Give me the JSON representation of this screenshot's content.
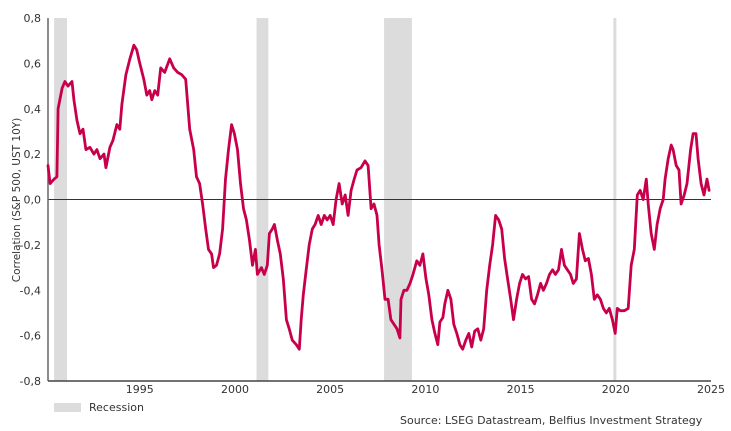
{
  "chart_data": {
    "type": "line",
    "title": "",
    "ylabel": "Correlation (S&P 500, UST 10Y)",
    "xlabel": "",
    "xlim": [
      1990.18,
      2025.0
    ],
    "ylim": [
      -0.8,
      0.8
    ],
    "x_ticks": [
      1995,
      2000,
      2005,
      2010,
      2015,
      2020,
      2025
    ],
    "x_tick_labels": [
      "1995",
      "2000",
      "2005",
      "2010",
      "2015",
      "2020",
      "2025"
    ],
    "y_ticks": [
      -0.8,
      -0.6,
      -0.4,
      -0.2,
      0.0,
      0.2,
      0.4,
      0.6,
      0.8
    ],
    "y_tick_labels": [
      "-0,8",
      "-0,6",
      "-0,4",
      "-0,2",
      "0,0",
      "0,2",
      "0,4",
      "0,6",
      "0,8"
    ],
    "grid": false,
    "zero_line": true,
    "line_color": "#c8004b",
    "recession_color": "#dcdcdc",
    "recessions": [
      [
        1990.5,
        1991.18
      ],
      [
        2001.13,
        2001.75
      ],
      [
        2007.83,
        2009.29
      ],
      [
        2019.87,
        2020.03
      ]
    ],
    "legend": {
      "entries": [
        "Recession"
      ],
      "placement": "bottom-left"
    },
    "source": "Source: LSEG Datastream, Belfius Investment Strategy",
    "series": [
      {
        "points": [
          [
            1990.18,
            0.15
          ],
          [
            1990.29,
            0.07
          ],
          [
            1990.5,
            0.09
          ],
          [
            1990.65,
            0.1
          ],
          [
            1990.71,
            0.4
          ],
          [
            1990.92,
            0.49
          ],
          [
            1991.07,
            0.52
          ],
          [
            1991.23,
            0.5
          ],
          [
            1991.44,
            0.52
          ],
          [
            1991.54,
            0.44
          ],
          [
            1991.7,
            0.35
          ],
          [
            1991.86,
            0.29
          ],
          [
            1992.02,
            0.31
          ],
          [
            1992.17,
            0.22
          ],
          [
            1992.38,
            0.23
          ],
          [
            1992.59,
            0.2
          ],
          [
            1992.75,
            0.22
          ],
          [
            1992.91,
            0.18
          ],
          [
            1993.12,
            0.2
          ],
          [
            1993.22,
            0.14
          ],
          [
            1993.43,
            0.23
          ],
          [
            1993.59,
            0.26
          ],
          [
            1993.8,
            0.33
          ],
          [
            1993.95,
            0.31
          ],
          [
            1994.06,
            0.42
          ],
          [
            1994.27,
            0.55
          ],
          [
            1994.48,
            0.62
          ],
          [
            1994.69,
            0.68
          ],
          [
            1994.84,
            0.66
          ],
          [
            1995.0,
            0.6
          ],
          [
            1995.21,
            0.53
          ],
          [
            1995.37,
            0.46
          ],
          [
            1995.52,
            0.48
          ],
          [
            1995.63,
            0.44
          ],
          [
            1995.79,
            0.48
          ],
          [
            1995.94,
            0.46
          ],
          [
            1996.1,
            0.58
          ],
          [
            1996.31,
            0.56
          ],
          [
            1996.57,
            0.62
          ],
          [
            1996.78,
            0.58
          ],
          [
            1996.99,
            0.56
          ],
          [
            1997.2,
            0.55
          ],
          [
            1997.41,
            0.53
          ],
          [
            1997.62,
            0.31
          ],
          [
            1997.83,
            0.22
          ],
          [
            1997.98,
            0.1
          ],
          [
            1998.14,
            0.07
          ],
          [
            1998.3,
            -0.02
          ],
          [
            1998.46,
            -0.13
          ],
          [
            1998.61,
            -0.22
          ],
          [
            1998.77,
            -0.24
          ],
          [
            1998.87,
            -0.3
          ],
          [
            1999.03,
            -0.29
          ],
          [
            1999.19,
            -0.24
          ],
          [
            1999.35,
            -0.13
          ],
          [
            1999.5,
            0.09
          ],
          [
            1999.66,
            0.22
          ],
          [
            1999.82,
            0.33
          ],
          [
            1999.97,
            0.29
          ],
          [
            2000.13,
            0.22
          ],
          [
            2000.29,
            0.07
          ],
          [
            2000.45,
            -0.04
          ],
          [
            2000.6,
            -0.09
          ],
          [
            2000.76,
            -0.18
          ],
          [
            2000.92,
            -0.29
          ],
          [
            2001.07,
            -0.22
          ],
          [
            2001.18,
            -0.33
          ],
          [
            2001.39,
            -0.3
          ],
          [
            2001.54,
            -0.33
          ],
          [
            2001.7,
            -0.29
          ],
          [
            2001.81,
            -0.15
          ],
          [
            2001.96,
            -0.13
          ],
          [
            2002.07,
            -0.11
          ],
          [
            2002.23,
            -0.18
          ],
          [
            2002.38,
            -0.24
          ],
          [
            2002.54,
            -0.35
          ],
          [
            2002.7,
            -0.53
          ],
          [
            2002.85,
            -0.57
          ],
          [
            2003.01,
            -0.62
          ],
          [
            2003.22,
            -0.64
          ],
          [
            2003.38,
            -0.66
          ],
          [
            2003.48,
            -0.53
          ],
          [
            2003.59,
            -0.42
          ],
          [
            2003.74,
            -0.31
          ],
          [
            2003.9,
            -0.2
          ],
          [
            2004.06,
            -0.13
          ],
          [
            2004.21,
            -0.11
          ],
          [
            2004.37,
            -0.07
          ],
          [
            2004.53,
            -0.11
          ],
          [
            2004.69,
            -0.07
          ],
          [
            2004.84,
            -0.09
          ],
          [
            2005.0,
            -0.07
          ],
          [
            2005.16,
            -0.11
          ],
          [
            2005.31,
            0.0
          ],
          [
            2005.47,
            0.07
          ],
          [
            2005.63,
            -0.02
          ],
          [
            2005.79,
            0.02
          ],
          [
            2005.94,
            -0.07
          ],
          [
            2006.1,
            0.04
          ],
          [
            2006.26,
            0.09
          ],
          [
            2006.41,
            0.13
          ],
          [
            2006.62,
            0.14
          ],
          [
            2006.83,
            0.17
          ],
          [
            2006.99,
            0.15
          ],
          [
            2007.15,
            -0.04
          ],
          [
            2007.3,
            -0.02
          ],
          [
            2007.46,
            -0.07
          ],
          [
            2007.57,
            -0.2
          ],
          [
            2007.72,
            -0.31
          ],
          [
            2007.88,
            -0.44
          ],
          [
            2008.04,
            -0.44
          ],
          [
            2008.19,
            -0.53
          ],
          [
            2008.35,
            -0.55
          ],
          [
            2008.51,
            -0.57
          ],
          [
            2008.66,
            -0.61
          ],
          [
            2008.72,
            -0.44
          ],
          [
            2008.87,
            -0.4
          ],
          [
            2009.03,
            -0.4
          ],
          [
            2009.19,
            -0.37
          ],
          [
            2009.35,
            -0.33
          ],
          [
            2009.55,
            -0.27
          ],
          [
            2009.71,
            -0.29
          ],
          [
            2009.87,
            -0.24
          ],
          [
            2010.03,
            -0.35
          ],
          [
            2010.18,
            -0.42
          ],
          [
            2010.34,
            -0.53
          ],
          [
            2010.5,
            -0.59
          ],
          [
            2010.65,
            -0.64
          ],
          [
            2010.76,
            -0.54
          ],
          [
            2010.92,
            -0.52
          ],
          [
            2011.02,
            -0.46
          ],
          [
            2011.18,
            -0.4
          ],
          [
            2011.34,
            -0.44
          ],
          [
            2011.49,
            -0.55
          ],
          [
            2011.65,
            -0.59
          ],
          [
            2011.81,
            -0.64
          ],
          [
            2011.96,
            -0.66
          ],
          [
            2012.12,
            -0.62
          ],
          [
            2012.28,
            -0.59
          ],
          [
            2012.43,
            -0.65
          ],
          [
            2012.59,
            -0.58
          ],
          [
            2012.75,
            -0.57
          ],
          [
            2012.91,
            -0.62
          ],
          [
            2013.06,
            -0.57
          ],
          [
            2013.22,
            -0.4
          ],
          [
            2013.38,
            -0.29
          ],
          [
            2013.53,
            -0.2
          ],
          [
            2013.69,
            -0.07
          ],
          [
            2013.85,
            -0.09
          ],
          [
            2014.01,
            -0.13
          ],
          [
            2014.16,
            -0.26
          ],
          [
            2014.32,
            -0.35
          ],
          [
            2014.48,
            -0.44
          ],
          [
            2014.63,
            -0.53
          ],
          [
            2014.79,
            -0.44
          ],
          [
            2014.95,
            -0.37
          ],
          [
            2015.1,
            -0.33
          ],
          [
            2015.26,
            -0.35
          ],
          [
            2015.42,
            -0.34
          ],
          [
            2015.58,
            -0.44
          ],
          [
            2015.73,
            -0.46
          ],
          [
            2015.89,
            -0.42
          ],
          [
            2016.05,
            -0.37
          ],
          [
            2016.2,
            -0.4
          ],
          [
            2016.36,
            -0.37
          ],
          [
            2016.52,
            -0.33
          ],
          [
            2016.68,
            -0.31
          ],
          [
            2016.83,
            -0.33
          ],
          [
            2016.99,
            -0.31
          ],
          [
            2017.15,
            -0.22
          ],
          [
            2017.3,
            -0.29
          ],
          [
            2017.46,
            -0.31
          ],
          [
            2017.62,
            -0.33
          ],
          [
            2017.77,
            -0.37
          ],
          [
            2017.93,
            -0.35
          ],
          [
            2018.09,
            -0.15
          ],
          [
            2018.25,
            -0.22
          ],
          [
            2018.4,
            -0.27
          ],
          [
            2018.56,
            -0.26
          ],
          [
            2018.72,
            -0.33
          ],
          [
            2018.87,
            -0.44
          ],
          [
            2019.03,
            -0.42
          ],
          [
            2019.19,
            -0.44
          ],
          [
            2019.35,
            -0.48
          ],
          [
            2019.5,
            -0.5
          ],
          [
            2019.66,
            -0.48
          ],
          [
            2019.82,
            -0.53
          ],
          [
            2019.97,
            -0.59
          ],
          [
            2020.08,
            -0.48
          ],
          [
            2020.24,
            -0.49
          ],
          [
            2020.45,
            -0.49
          ],
          [
            2020.65,
            -0.48
          ],
          [
            2020.81,
            -0.29
          ],
          [
            2020.97,
            -0.22
          ],
          [
            2021.13,
            0.02
          ],
          [
            2021.28,
            0.04
          ],
          [
            2021.44,
            0.0
          ],
          [
            2021.6,
            0.09
          ],
          [
            2021.7,
            -0.02
          ],
          [
            2021.86,
            -0.15
          ],
          [
            2022.02,
            -0.22
          ],
          [
            2022.17,
            -0.11
          ],
          [
            2022.33,
            -0.04
          ],
          [
            2022.49,
            0.0
          ],
          [
            2022.59,
            0.09
          ],
          [
            2022.75,
            0.18
          ],
          [
            2022.91,
            0.24
          ],
          [
            2023.01,
            0.22
          ],
          [
            2023.17,
            0.15
          ],
          [
            2023.32,
            0.13
          ],
          [
            2023.43,
            -0.02
          ],
          [
            2023.59,
            0.02
          ],
          [
            2023.74,
            0.07
          ],
          [
            2023.93,
            0.22
          ],
          [
            2024.06,
            0.29
          ],
          [
            2024.21,
            0.29
          ],
          [
            2024.32,
            0.18
          ],
          [
            2024.48,
            0.07
          ],
          [
            2024.63,
            0.02
          ],
          [
            2024.79,
            0.09
          ],
          [
            2024.9,
            0.04
          ]
        ]
      }
    ]
  }
}
